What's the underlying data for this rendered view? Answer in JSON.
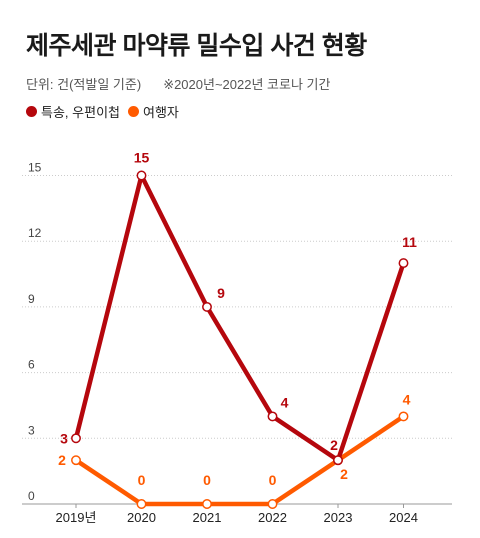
{
  "header": {
    "title": "제주세관 마약류 밀수입 사건 현황",
    "unit_note": "단위: 건(적발일 기준)",
    "covid_note": "※2020년~2022년 코로나 기간"
  },
  "colors": {
    "series_postal": "#b5070d",
    "series_travel": "#ff5a00",
    "grid": "#cccccc"
  },
  "chart_data": {
    "type": "line",
    "title": "제주세관 마약류 밀수입 사건 현황",
    "xlabel": "",
    "ylabel": "",
    "x": [
      "2019년",
      "2020",
      "2021",
      "2022",
      "2023",
      "2024"
    ],
    "ylim": [
      0,
      16
    ],
    "yticks": [
      0,
      3,
      6,
      9,
      12,
      15
    ],
    "grid": "horizontal dotted",
    "legend": "top-left",
    "series": [
      {
        "name": "특송, 우편이첩",
        "color": "#b5070d",
        "values": [
          3,
          15,
          9,
          4,
          2,
          11
        ],
        "labels": [
          "3",
          "15",
          "9",
          "4",
          "2",
          "11"
        ]
      },
      {
        "name": "여행자",
        "color": "#ff5a00",
        "values": [
          2,
          0,
          0,
          0,
          2,
          4
        ],
        "labels": [
          "2",
          "0",
          "0",
          "0",
          "2",
          "4"
        ]
      }
    ]
  }
}
